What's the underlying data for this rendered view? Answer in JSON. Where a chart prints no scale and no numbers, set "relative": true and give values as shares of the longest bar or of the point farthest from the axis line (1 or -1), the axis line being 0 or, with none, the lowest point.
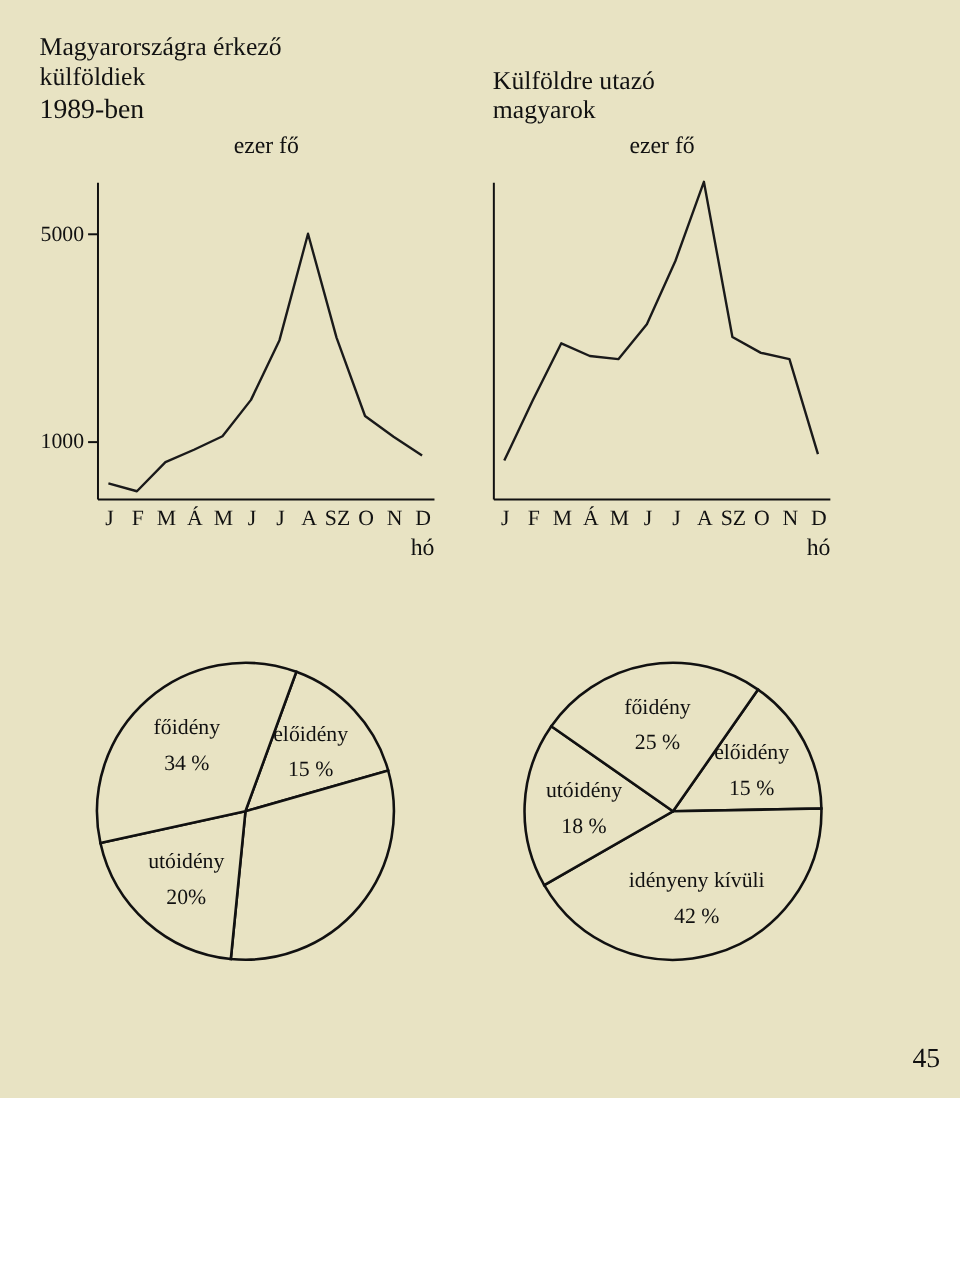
{
  "chart_data": [
    {
      "type": "line",
      "title": "Magyarországra érkező külföldiek",
      "subtitle": "1989-ben",
      "ylabel": "ezer fő",
      "xlabel": "hó",
      "categories": [
        "J",
        "F",
        "M",
        "Á",
        "M",
        "J",
        "J",
        "A",
        "SZ",
        "O",
        "N",
        "D"
      ],
      "series": [
        {
          "color": "#1a1a1a",
          "values": [
            190,
            40,
            600,
            840,
            1100,
            1800,
            2950,
            5000,
            3000,
            1490,
            1090,
            730
          ]
        }
      ],
      "ylim": [
        -100,
        6000
      ],
      "yticks": [
        1000,
        5000
      ],
      "grid": false,
      "marker": "none",
      "line_style": "solid"
    },
    {
      "type": "line",
      "title": "Külföldre utazó magyarok",
      "ylabel": "ezer fő",
      "xlabel": "hó",
      "relative": true,
      "categories": [
        "J",
        "F",
        "M",
        "Á",
        "M",
        "J",
        "J",
        "A",
        "SZ",
        "O",
        "N",
        "D"
      ],
      "series": [
        {
          "color": "#1a1a1a",
          "values": [
            0.12,
            0.31,
            0.49,
            0.45,
            0.44,
            0.55,
            0.75,
            1.0,
            0.51,
            0.46,
            0.44,
            0.14
          ]
        }
      ],
      "grid": false,
      "marker": "none",
      "line_style": "solid"
    },
    {
      "type": "pie",
      "categories": [
        "előidény",
        null,
        "utóidény",
        "főidény"
      ],
      "values": [
        15,
        31,
        20,
        34
      ],
      "value_labels": [
        "15 %",
        null,
        "20%",
        "34 %"
      ],
      "colors": [
        "#e8e3c3",
        "#e8e3c3",
        "#e8e3c3",
        "#e8e3c3"
      ],
      "legend": false
    },
    {
      "type": "pie",
      "categories": [
        "előidény",
        "idényeny kívüli",
        "utóidény",
        "főidény"
      ],
      "values": [
        15,
        42,
        18,
        25
      ],
      "value_labels": [
        "15 %",
        "42 %",
        "18 %",
        "25 %"
      ],
      "colors": [
        "#e8e3c3",
        "#e8e3c3",
        "#e8e3c3",
        "#e8e3c3"
      ],
      "legend": false,
      "annotations": [
        "45"
      ]
    }
  ]
}
